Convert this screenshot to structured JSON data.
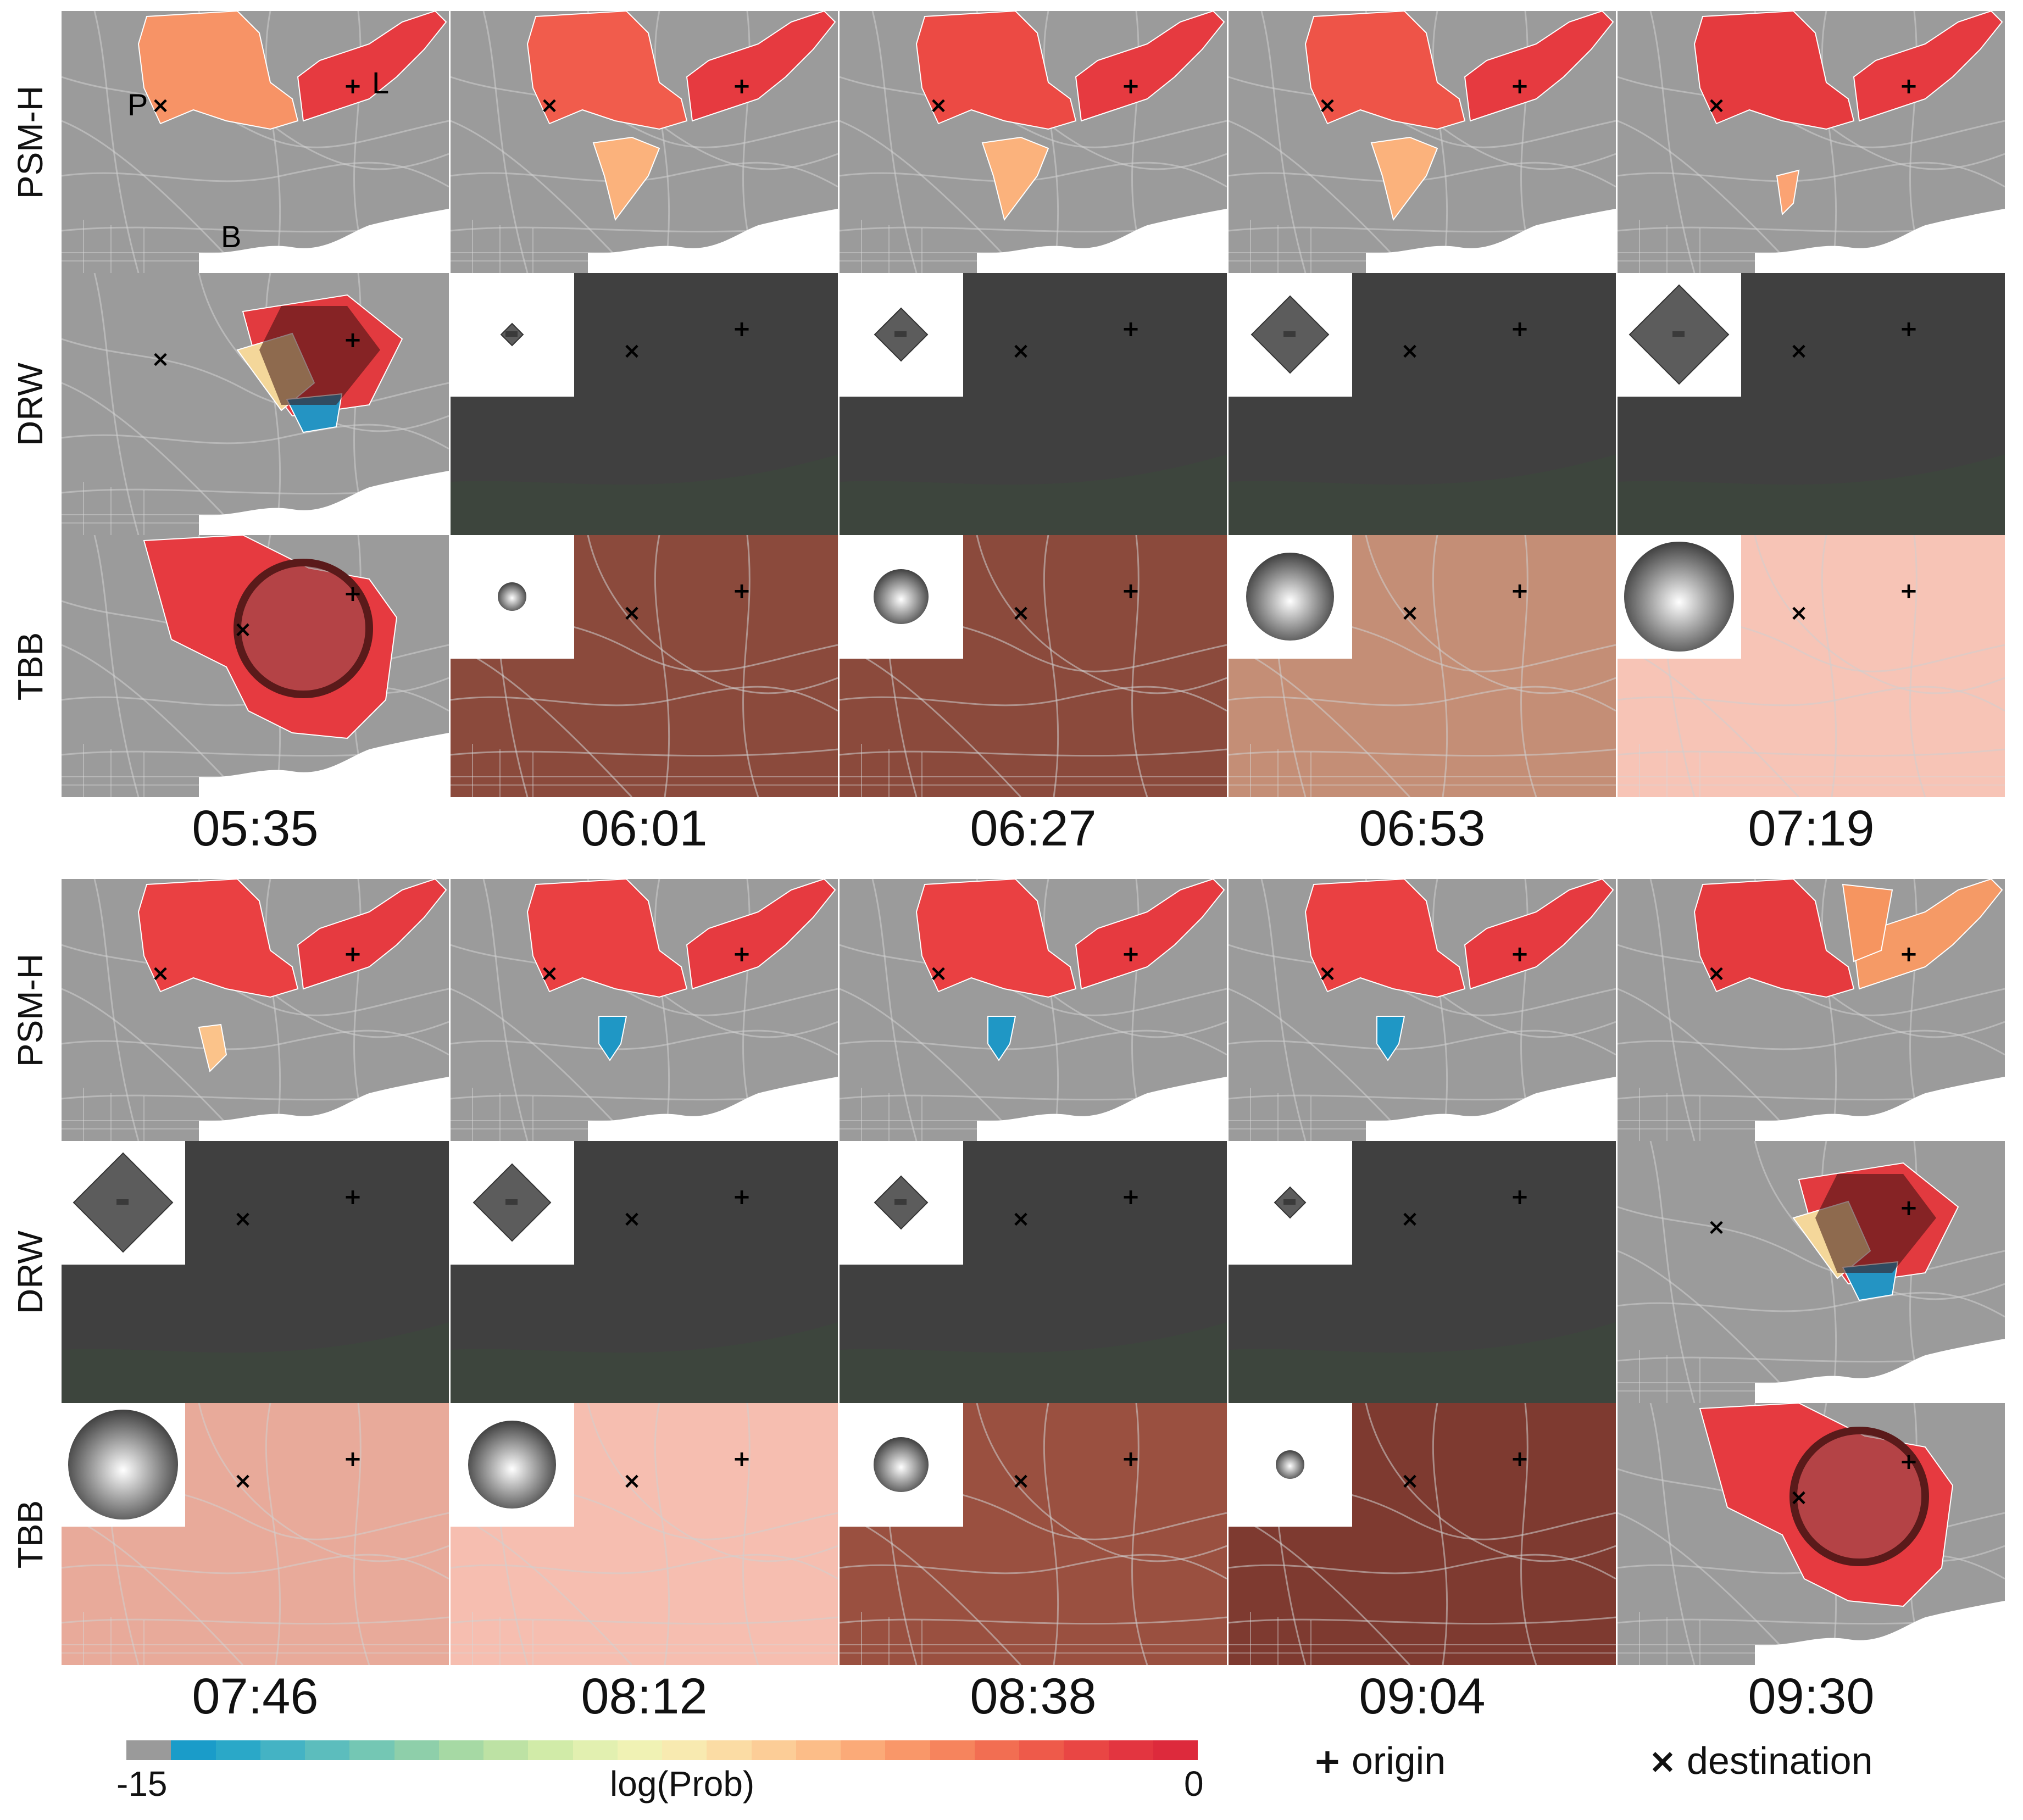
{
  "row_labels": [
    "PSM-H",
    "DRW",
    "TBB"
  ],
  "top_times": [
    "05:35",
    "06:01",
    "06:27",
    "06:53",
    "07:19"
  ],
  "bottom_times": [
    "07:46",
    "08:12",
    "08:38",
    "09:04",
    "09:30"
  ],
  "map_letters": {
    "p": "P",
    "l": "L",
    "b": "B"
  },
  "markers": {
    "origin": "+",
    "destination": "×"
  },
  "legend": {
    "min_label": "-15",
    "mid_label": "log(Prob)",
    "max_label": "0",
    "origin_label": "origin",
    "destination_label": "destination",
    "colors": [
      "#9a9a9a",
      "#1a9cc9",
      "#2aa8c8",
      "#44b3c4",
      "#5cbdbd",
      "#74c7b4",
      "#8ecfaa",
      "#a6d9a4",
      "#bde2a4",
      "#d1eba8",
      "#e2f0b0",
      "#f0f2b4",
      "#f8eab0",
      "#fbdca4",
      "#fccd97",
      "#fcbd88",
      "#fbaa78",
      "#f99769",
      "#f6845d",
      "#f26e52",
      "#ee5a4a",
      "#e94644",
      "#e33540",
      "#dd2a3c"
    ]
  },
  "colors": {
    "map_base": "#9b9b9b",
    "dark_map": "#404040",
    "road": "#c8c8c8"
  }
}
